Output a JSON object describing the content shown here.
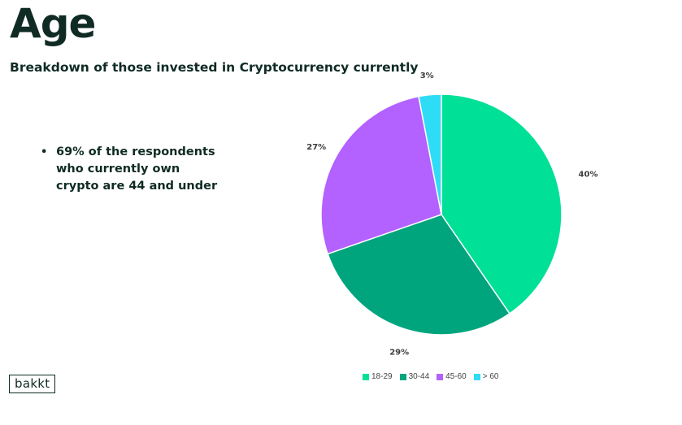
{
  "slide": {
    "title": "Age",
    "subtitle": "Breakdown of those invested in Cryptocurrency currently",
    "bullets": [
      "69% of the respondents who currently own crypto are 44 and under"
    ],
    "logo_text": "bakkt"
  },
  "chart_data": {
    "type": "pie",
    "title": "",
    "slices": [
      {
        "label": "18-29",
        "value": 40,
        "display": "40%",
        "color": "#00e096"
      },
      {
        "label": "30-44",
        "value": 29,
        "display": "29%",
        "color": "#00a57e"
      },
      {
        "label": "45-60",
        "value": 27,
        "display": "27%",
        "color": "#b361ff"
      },
      {
        "label": "> 60",
        "value": 3,
        "display": "3%",
        "color": "#2fdcf5"
      }
    ],
    "legend_position": "bottom"
  }
}
